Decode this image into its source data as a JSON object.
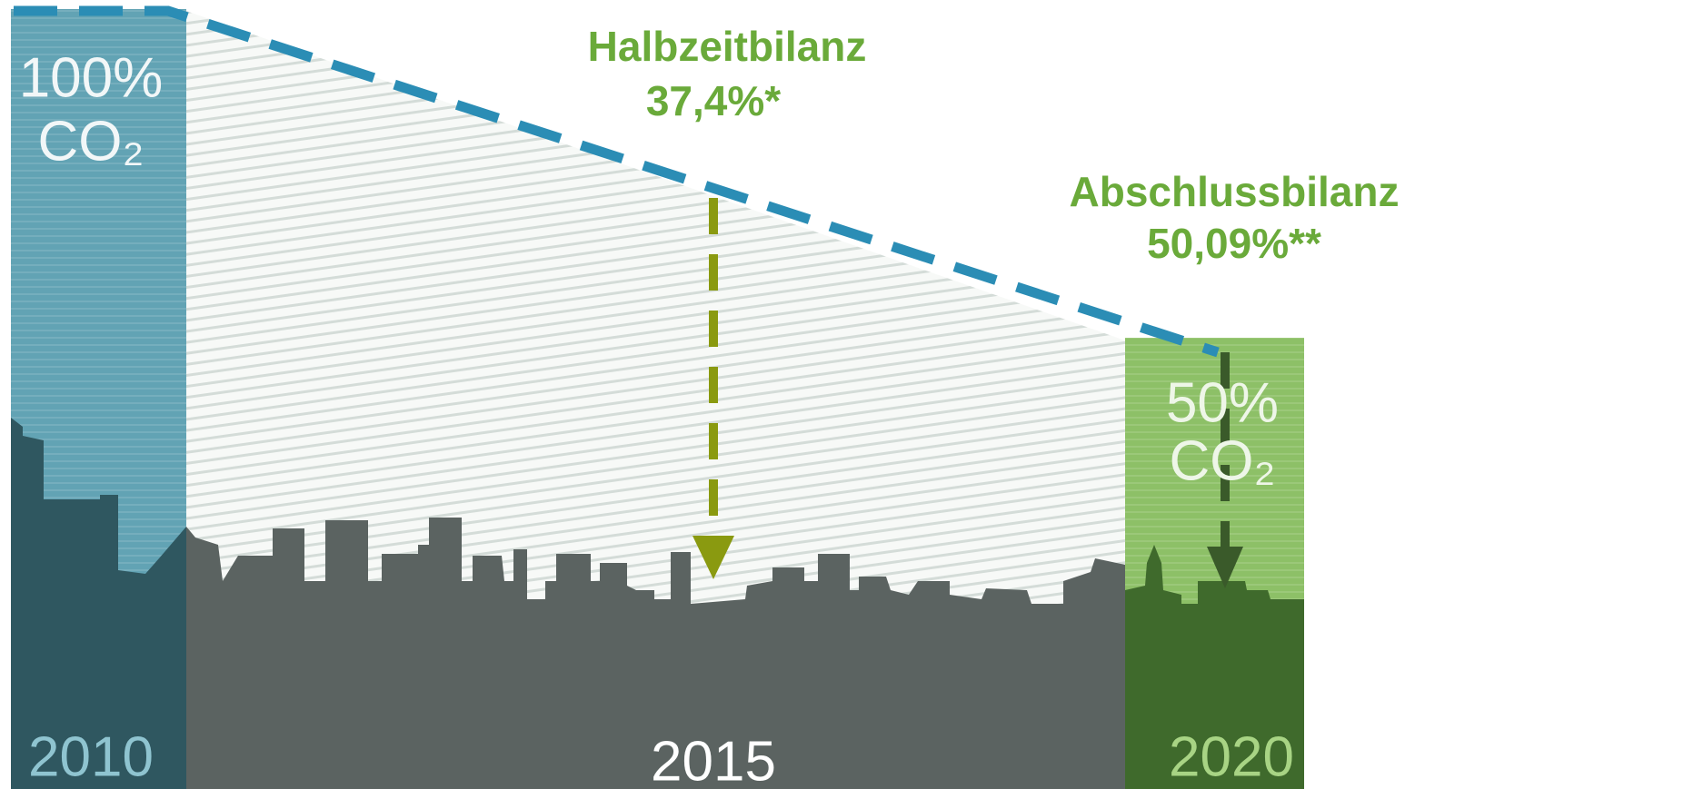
{
  "left": {
    "value": "100%",
    "unit": "CO₂",
    "year": "2010"
  },
  "midterm": {
    "title": "Halbzeitbilanz",
    "value": "37,4%*",
    "year": "2015"
  },
  "final": {
    "title": "Abschlussbilanz",
    "value": "50,09%**"
  },
  "right": {
    "value": "50%",
    "unit": "CO₂",
    "year": "2020"
  }
}
